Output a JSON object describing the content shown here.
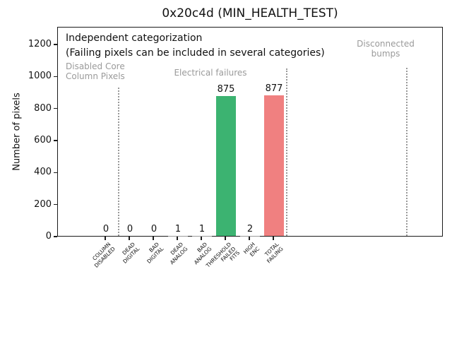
{
  "title": "0x20c4d (MIN_HEALTH_TEST)",
  "annotations": {
    "line1": "Independent categorization",
    "line2": "(Failing pixels can be included in several categories)"
  },
  "chart_data": {
    "type": "bar",
    "title": "0x20c4d (MIN_HEALTH_TEST)",
    "xlabel": "",
    "ylabel": "Number of pixels",
    "ylim": [
      0,
      1310
    ],
    "grid": false,
    "legend": false,
    "yticks": [
      0,
      200,
      400,
      600,
      800,
      1000,
      1200
    ],
    "categories": [
      "COLUMN\nDISABLED",
      "DEAD\nDIGITAL",
      "BAD\nDIGITAL",
      "DEAD\nANALOG",
      "BAD\nANALOG",
      "THRESHOLD\nFAILED\nFITS",
      "HIGH\nENC",
      "TOTAL\nFAILING"
    ],
    "values": [
      0,
      0,
      0,
      1,
      1,
      875,
      2,
      877
    ],
    "bar_colors": [
      "#9a9a9a",
      "#9a9a9a",
      "#9a9a9a",
      "#9a9a9a",
      "#9a9a9a",
      "#3cb371",
      "#9a9a9a",
      "#f08080"
    ],
    "value_labels": [
      "0",
      "0",
      "0",
      "1",
      "1",
      "875",
      "2",
      "877"
    ],
    "sections": [
      {
        "label": "Disabled Core\nColumn Pixels"
      },
      {
        "label": "Electrical failures"
      },
      {
        "label": "Disconnected\nbumps"
      }
    ],
    "colors": {
      "threshold_failed_fits": "#3cb371",
      "total_failing": "#f08080",
      "section_text": "#9a9a9a",
      "section_line": "#999999"
    }
  }
}
